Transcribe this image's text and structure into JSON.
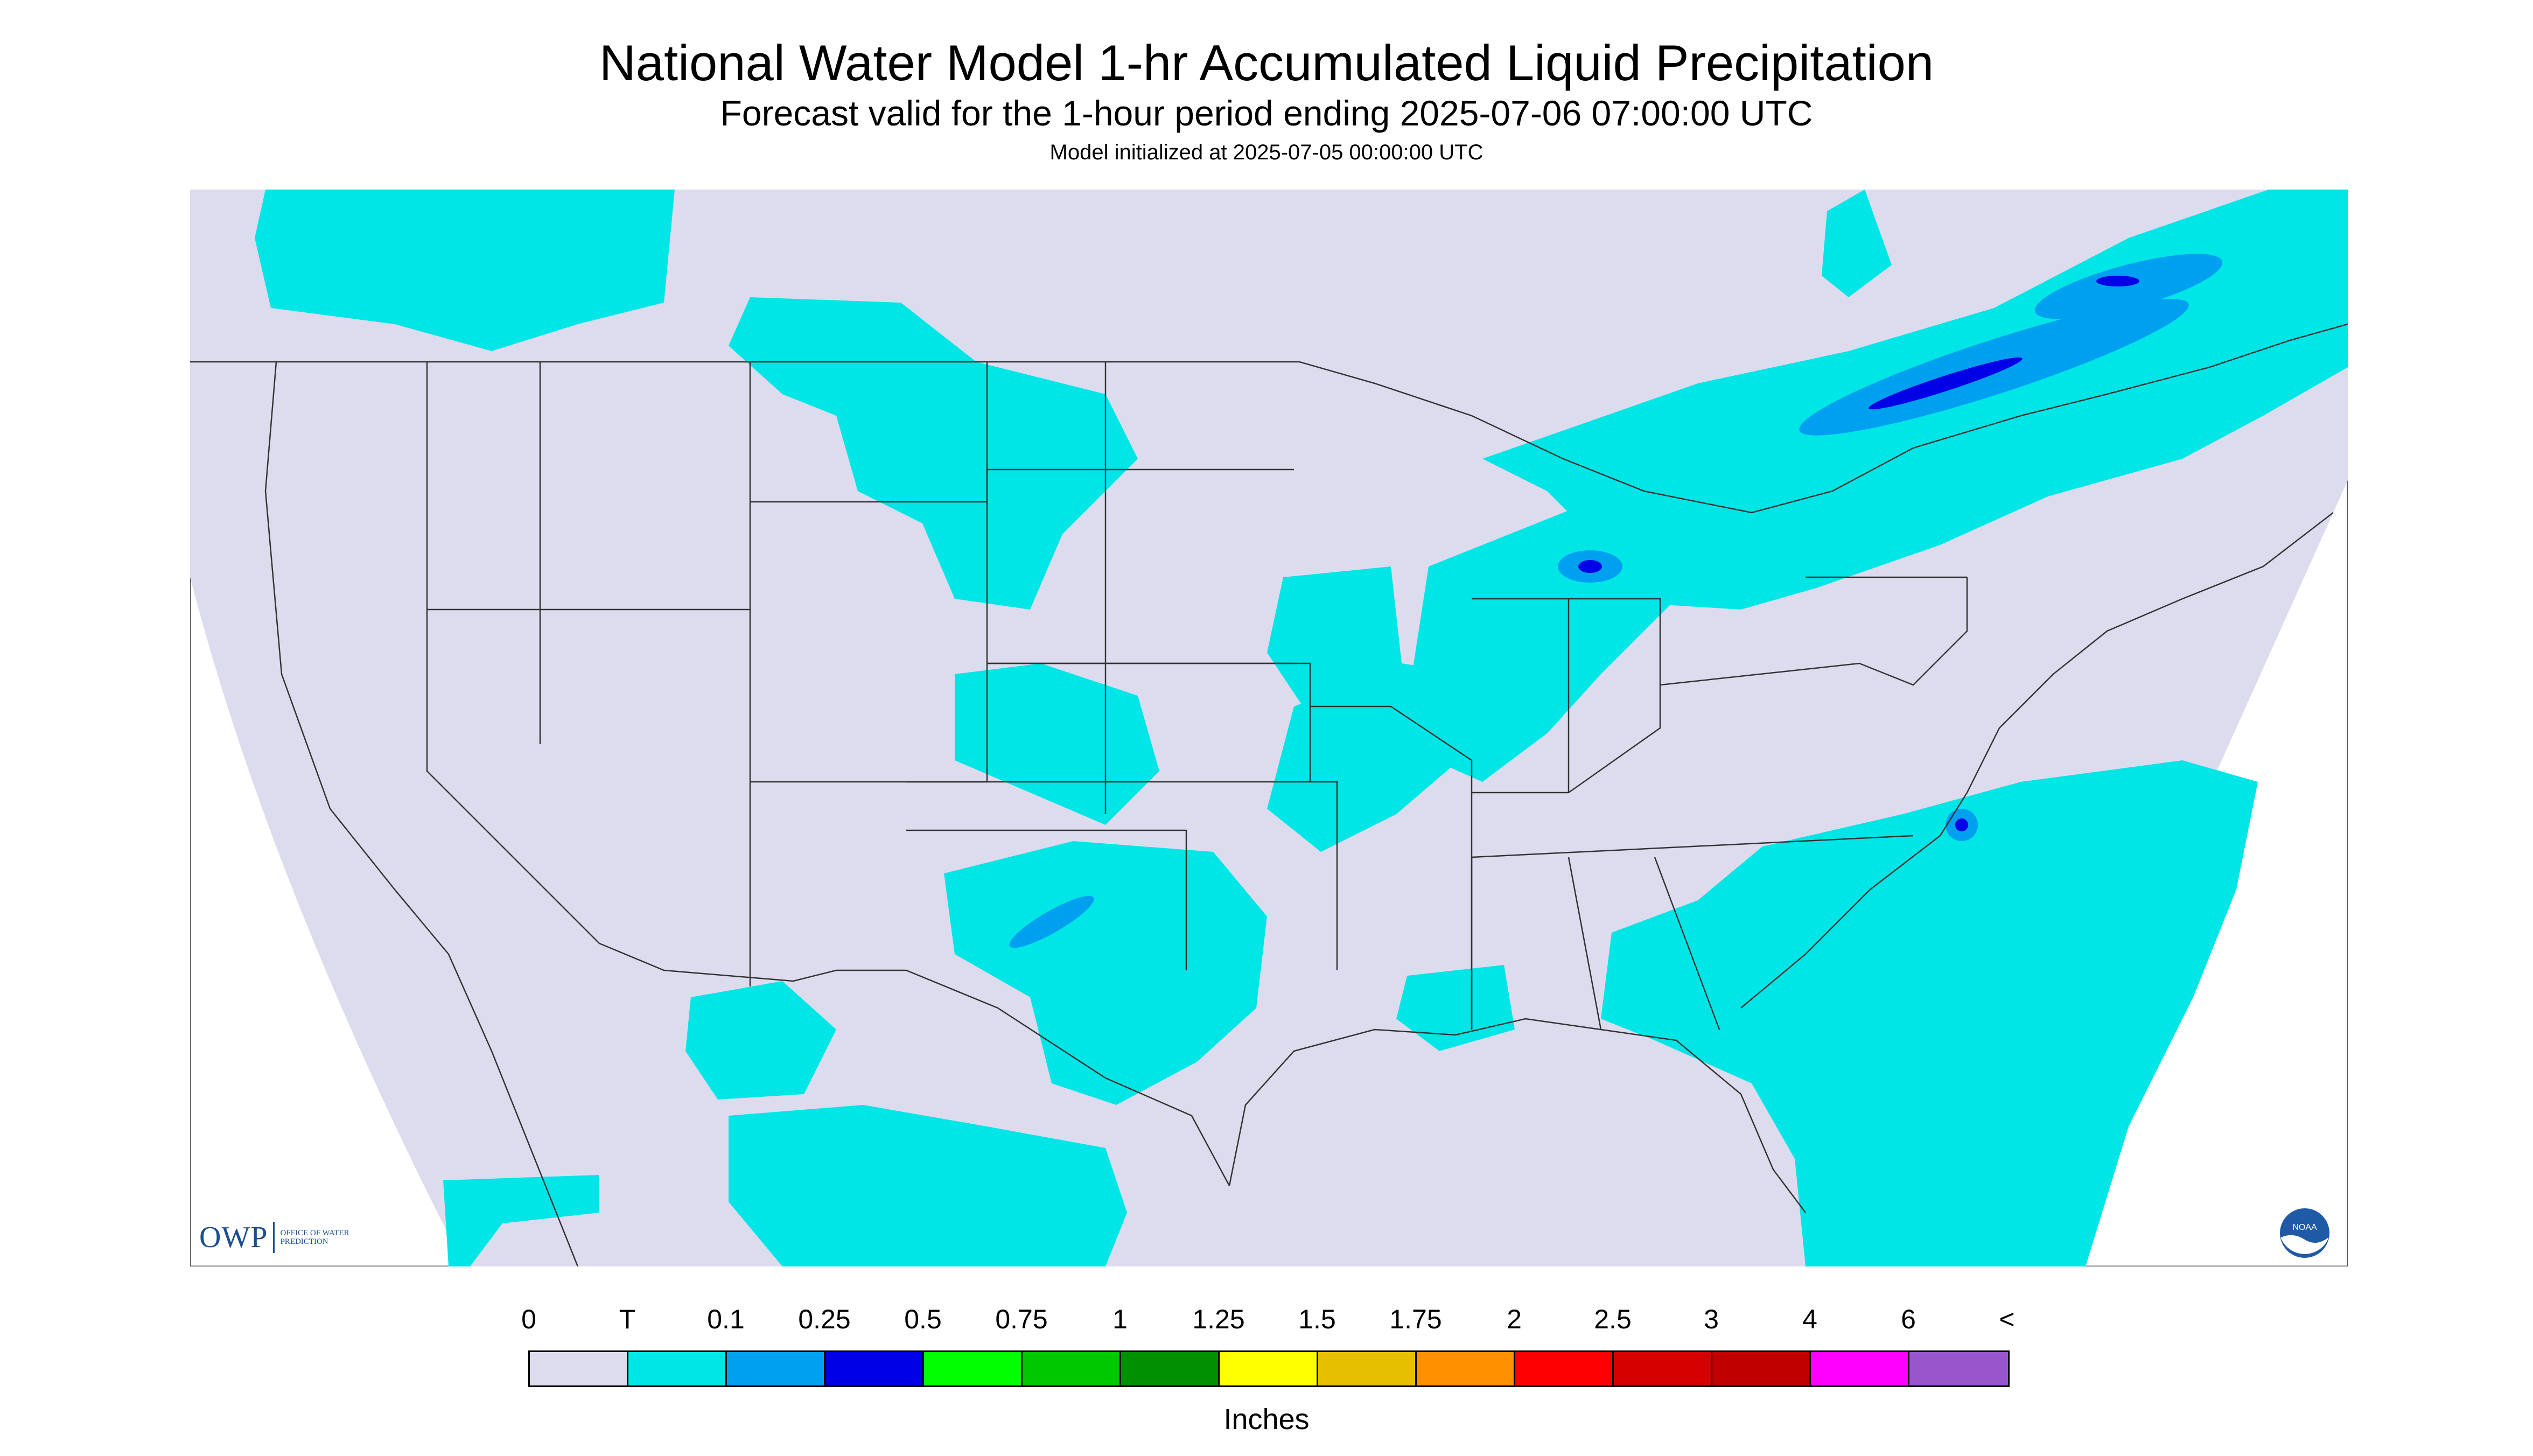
{
  "header": {
    "title": "National Water Model 1-hr Accumulated Liquid Precipitation",
    "subtitle": "Forecast valid for the 1-hour period ending 2025-07-06 07:00:00 UTC",
    "init": "Model initialized at 2025-07-05 00:00:00 UTC"
  },
  "logos": {
    "owp_mark": "OWP",
    "owp_text": "OFFICE OF WATER PREDICTION",
    "noaa_text": "NOAA"
  },
  "legend": {
    "units": "Inches",
    "labels": [
      "0",
      "T",
      "0.1",
      "0.25",
      "0.5",
      "0.75",
      "1",
      "1.25",
      "1.5",
      "1.75",
      "2",
      "2.5",
      "3",
      "4",
      "6",
      "<"
    ],
    "colors": [
      "#dcdcee",
      "#00e6e6",
      "#00a0f0",
      "#0000e6",
      "#00ff00",
      "#00c800",
      "#009000",
      "#ffff00",
      "#e6c000",
      "#ff9000",
      "#ff0000",
      "#d60000",
      "#c00000",
      "#ff00ff",
      "#9955cc"
    ]
  },
  "map": {
    "background_color": "#dcdcee",
    "outside_color": "#ffffff",
    "border_color": "#333333",
    "precip_colors": {
      "light": "#00e6e6",
      "moderate": "#00a0f0",
      "heavy": "#0000e6"
    }
  }
}
